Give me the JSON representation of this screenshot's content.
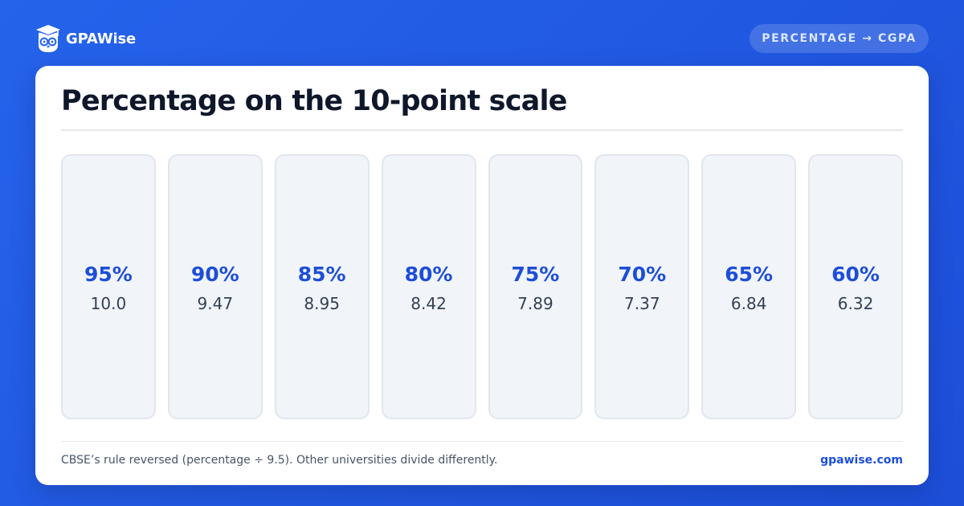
{
  "header": {
    "brand": "GPAWise",
    "badge": "PERCENTAGE → CGPA",
    "logo_icon": "owl-graduate-icon"
  },
  "card": {
    "title": "Percentage on the 10-point scale",
    "tiles": [
      {
        "percentage": "95%",
        "cgpa": "10.0"
      },
      {
        "percentage": "90%",
        "cgpa": "9.47"
      },
      {
        "percentage": "85%",
        "cgpa": "8.95"
      },
      {
        "percentage": "80%",
        "cgpa": "8.42"
      },
      {
        "percentage": "75%",
        "cgpa": "7.89"
      },
      {
        "percentage": "70%",
        "cgpa": "7.37"
      },
      {
        "percentage": "65%",
        "cgpa": "6.84"
      },
      {
        "percentage": "60%",
        "cgpa": "6.32"
      }
    ],
    "footnote": "CBSE’s rule reversed (percentage ÷ 9.5). Other universities divide differently.",
    "site": "gpawise.com"
  },
  "colors": {
    "background": "#2563eb",
    "accent": "#1d4ed8",
    "title": "#0f172a",
    "tile_bg": "#f1f4f9"
  }
}
